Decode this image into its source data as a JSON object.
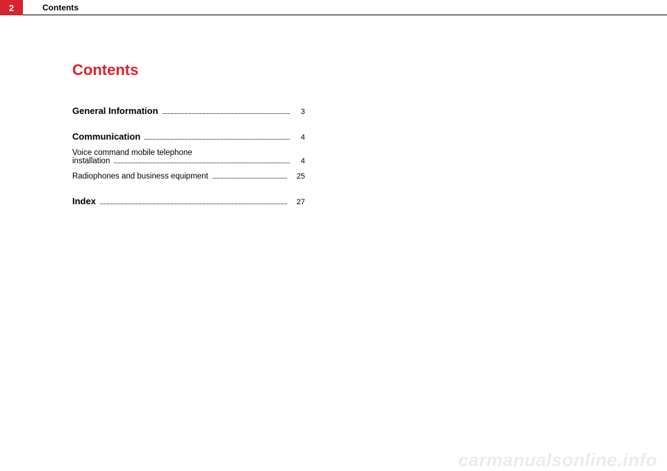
{
  "header": {
    "page_number": "2",
    "title": "Contents"
  },
  "contents": {
    "heading": "Contents",
    "entries": [
      {
        "label": "General Information",
        "page": "3",
        "bold": true,
        "section": true
      },
      {
        "label": "Communication",
        "page": "4",
        "bold": true,
        "section": true
      },
      {
        "label": "Voice command mobile telephone installation",
        "page": "4",
        "bold": false,
        "section": false,
        "multiline": true
      },
      {
        "label": "Radiophones and business equipment",
        "page": "25",
        "bold": false,
        "section": false
      },
      {
        "label": "Index",
        "page": "27",
        "bold": true,
        "section": true
      }
    ]
  },
  "watermark": "carmanualsonline.info"
}
